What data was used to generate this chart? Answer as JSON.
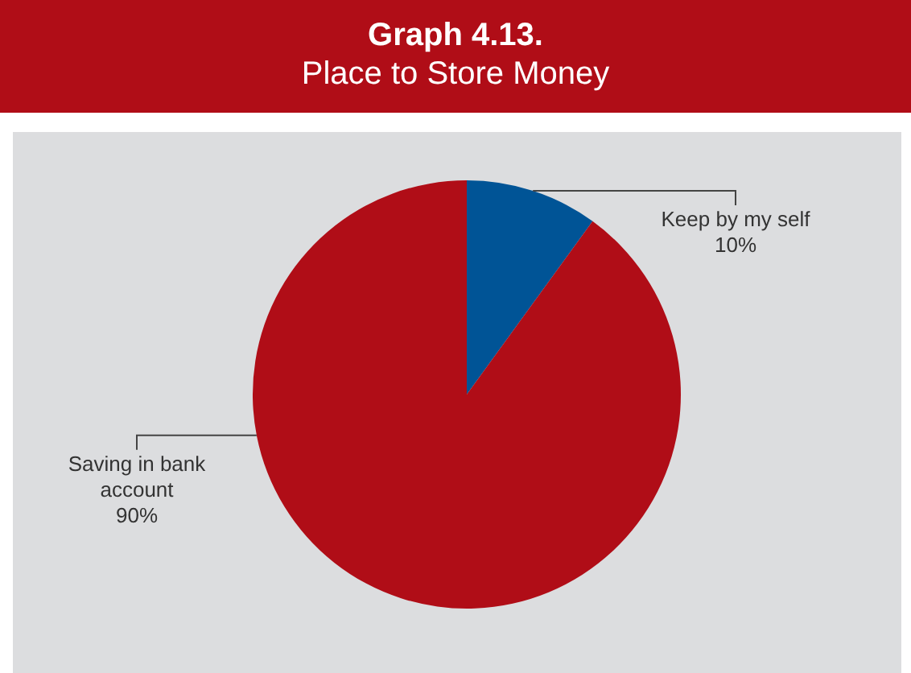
{
  "chart_data": {
    "type": "pie",
    "title": "Graph 4.13.",
    "subtitle": "Place to Store Money",
    "categories": [
      "Keep by my self",
      "Saving in bank account"
    ],
    "values": [
      10,
      90
    ],
    "colors": [
      "#005496",
      "#b00d17"
    ],
    "value_labels": [
      "10%",
      "90%"
    ],
    "legend": false
  }
}
